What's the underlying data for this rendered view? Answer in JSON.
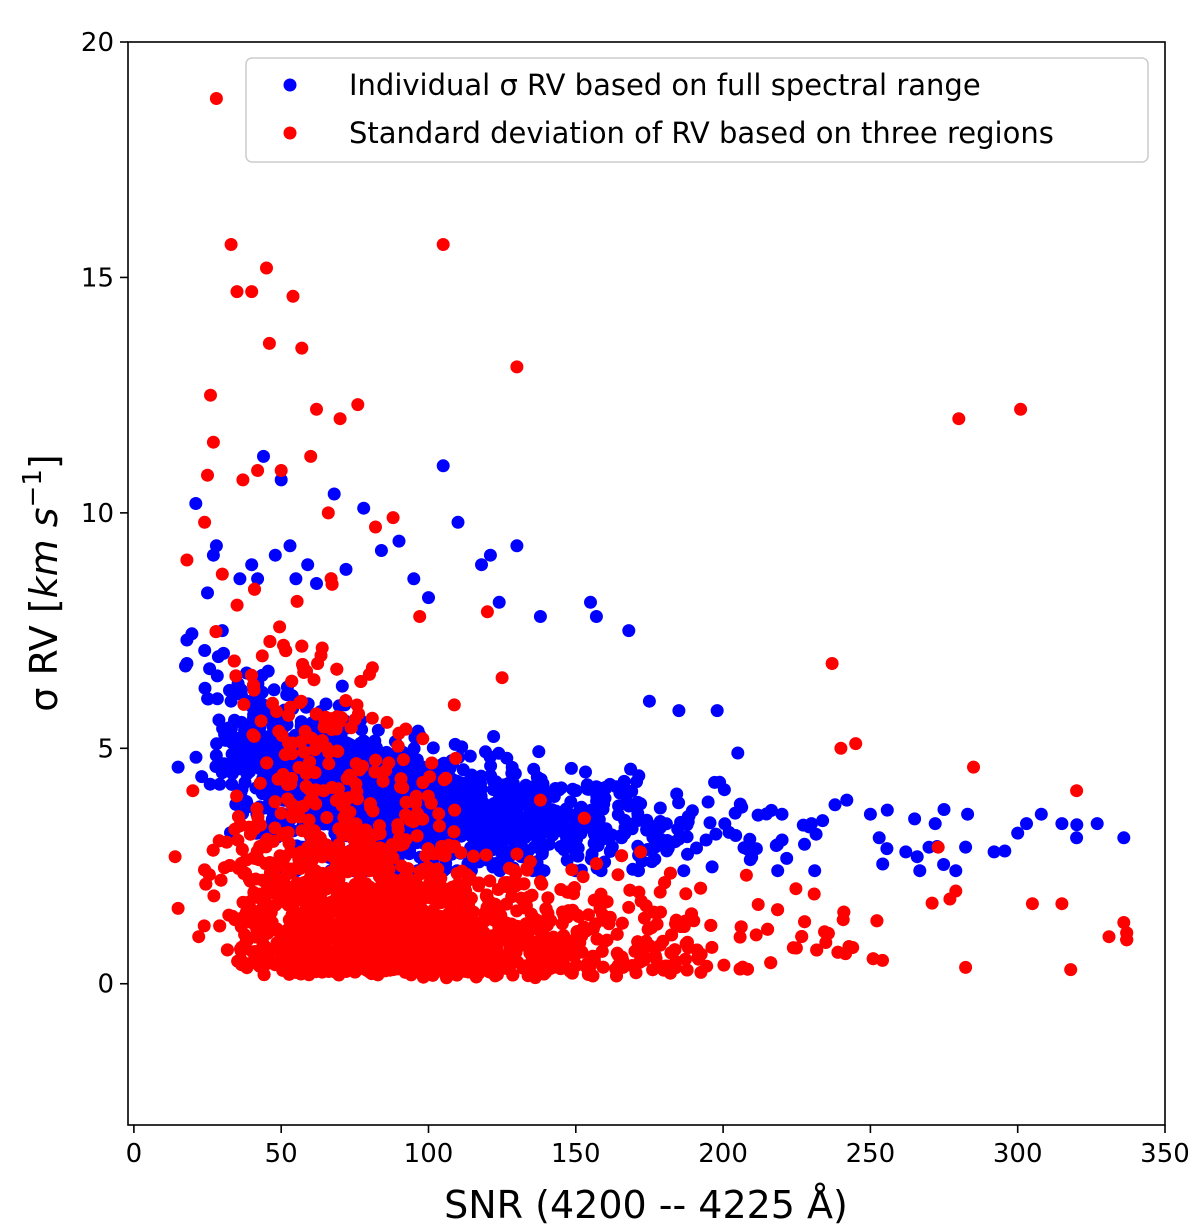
{
  "chart_data": {
    "type": "scatter",
    "title": "",
    "xlabel": "SNR (4200 -- 4225 Å)",
    "ylabel_main": "σ RV [",
    "ylabel_unit": "km s",
    "ylabel_exp": "−1",
    "ylabel_close": "]",
    "xlim": [
      -2,
      350
    ],
    "ylim": [
      -3,
      20
    ],
    "xticks": [
      0,
      50,
      100,
      150,
      200,
      250,
      300,
      350
    ],
    "yticks": [
      0,
      5,
      10,
      15,
      20
    ],
    "legend_position": "top-right",
    "series": [
      {
        "name": "Individual σ RV based on full spectral range",
        "color": "#0000ff",
        "cluster_description": "dense cloud; sigma falls from ~6 at SNR 20-60 to ~3.2 at SNR 300+",
        "points": [
          [
            15,
            4.6
          ],
          [
            18,
            7.3
          ],
          [
            18,
            6.8
          ],
          [
            21,
            10.2
          ],
          [
            23,
            4.4
          ],
          [
            25,
            8.3
          ],
          [
            27,
            9.1
          ],
          [
            28,
            9.3
          ],
          [
            30,
            7.5
          ],
          [
            33,
            6.0
          ],
          [
            36,
            8.6
          ],
          [
            40,
            8.9
          ],
          [
            42,
            8.6
          ],
          [
            44,
            11.2
          ],
          [
            48,
            9.1
          ],
          [
            50,
            10.7
          ],
          [
            53,
            9.3
          ],
          [
            55,
            8.6
          ],
          [
            59,
            8.9
          ],
          [
            62,
            8.5
          ],
          [
            68,
            10.4
          ],
          [
            72,
            8.8
          ],
          [
            78,
            10.1
          ],
          [
            84,
            9.2
          ],
          [
            90,
            9.4
          ],
          [
            95,
            8.6
          ],
          [
            100,
            8.2
          ],
          [
            105,
            11.0
          ],
          [
            110,
            9.8
          ],
          [
            118,
            8.9
          ],
          [
            121,
            9.1
          ],
          [
            124,
            8.1
          ],
          [
            130,
            9.3
          ],
          [
            138,
            7.8
          ],
          [
            155,
            8.1
          ],
          [
            157,
            7.8
          ],
          [
            168,
            7.5
          ],
          [
            175,
            6.0
          ],
          [
            185,
            5.8
          ],
          [
            198,
            5.8
          ],
          [
            205,
            4.9
          ],
          [
            220,
            3.6
          ],
          [
            230,
            3.4
          ],
          [
            238,
            3.8
          ],
          [
            242,
            3.9
          ],
          [
            250,
            3.6
          ],
          [
            253,
            3.1
          ],
          [
            262,
            2.8
          ],
          [
            265,
            3.5
          ],
          [
            272,
            3.4
          ],
          [
            275,
            3.7
          ],
          [
            283,
            3.6
          ],
          [
            292,
            2.8
          ],
          [
            300,
            3.2
          ],
          [
            303,
            3.4
          ],
          [
            308,
            3.6
          ],
          [
            315,
            3.4
          ],
          [
            320,
            3.1
          ],
          [
            327,
            3.4
          ],
          [
            336,
            3.1
          ]
        ]
      },
      {
        "name": "Standard deviation of RV based on three regions",
        "color": "#ff0000",
        "cluster_description": "dense cloud near 0.2-3 with a spread tail to ~10 at low SNR",
        "points": [
          [
            15,
            1.6
          ],
          [
            18,
            9.0
          ],
          [
            20,
            4.1
          ],
          [
            22,
            1.0
          ],
          [
            24,
            9.8
          ],
          [
            25,
            10.8
          ],
          [
            26,
            12.5
          ],
          [
            27,
            11.5
          ],
          [
            28,
            18.8
          ],
          [
            30,
            8.7
          ],
          [
            33,
            15.7
          ],
          [
            35,
            14.7
          ],
          [
            37,
            10.7
          ],
          [
            40,
            14.7
          ],
          [
            42,
            10.9
          ],
          [
            45,
            15.2
          ],
          [
            46,
            13.6
          ],
          [
            50,
            10.9
          ],
          [
            54,
            14.6
          ],
          [
            57,
            13.5
          ],
          [
            60,
            11.2
          ],
          [
            62,
            12.2
          ],
          [
            66,
            10.0
          ],
          [
            70,
            12.0
          ],
          [
            76,
            12.3
          ],
          [
            82,
            9.7
          ],
          [
            88,
            9.9
          ],
          [
            97,
            7.8
          ],
          [
            105,
            15.7
          ],
          [
            120,
            7.9
          ],
          [
            125,
            6.5
          ],
          [
            130,
            13.1
          ],
          [
            138,
            3.9
          ],
          [
            172,
            2.8
          ],
          [
            237,
            6.8
          ],
          [
            240,
            5.0
          ],
          [
            245,
            5.1
          ],
          [
            273,
            2.9
          ],
          [
            277,
            1.8
          ],
          [
            280,
            12.0
          ],
          [
            285,
            4.6
          ],
          [
            301,
            12.2
          ],
          [
            305,
            1.7
          ],
          [
            315,
            1.7
          ],
          [
            320,
            4.1
          ],
          [
            331,
            1.0
          ],
          [
            336,
            1.3
          ],
          [
            318,
            0.3
          ]
        ]
      }
    ]
  }
}
